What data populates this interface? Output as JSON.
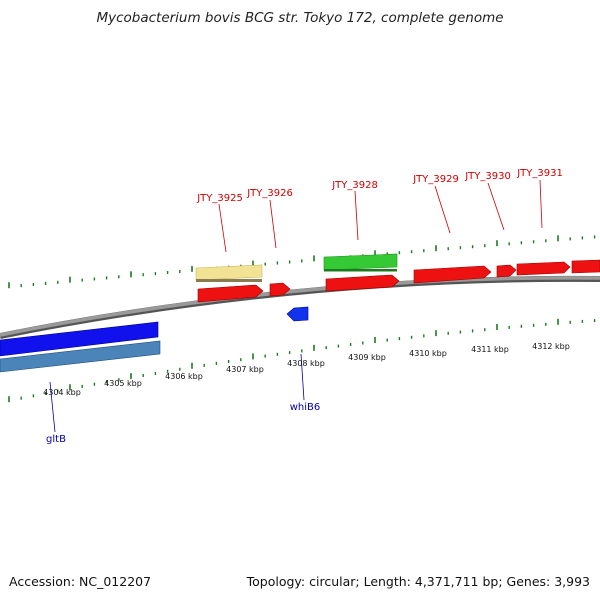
{
  "title": "Mycobacterium bovis BCG str. Tokyo 172, complete genome",
  "footer": {
    "accession": "Accession: NC_012207",
    "summary": "Topology: circular; Length: 4,371,711 bp; Genes: 3,993"
  },
  "colors": {
    "backbone": "#8a8a8a",
    "tick": "#1e7a1e",
    "plus_label": "#cc0000",
    "minus_label": "#0000aa",
    "feature_red": "#ee0000",
    "feature_green": "#33cc33",
    "feature_khaki": "#f0e68c",
    "feature_blue": "#0000ee",
    "feature_steelblue": "#4682b4"
  },
  "scale_labels": [
    "4304 kbp",
    "4305 kbp",
    "4306 kbp",
    "4307 kbp",
    "4308 kbp",
    "4309 kbp",
    "4310 kbp",
    "4311 kbp",
    "4312 kbp"
  ],
  "gene_labels_plus": [
    "JTY_3925",
    "JTY_3926",
    "JTY_3928",
    "JTY_3929",
    "JTY_3930",
    "JTY_3931"
  ],
  "gene_labels_minus": [
    "gltB",
    "whiB6"
  ]
}
